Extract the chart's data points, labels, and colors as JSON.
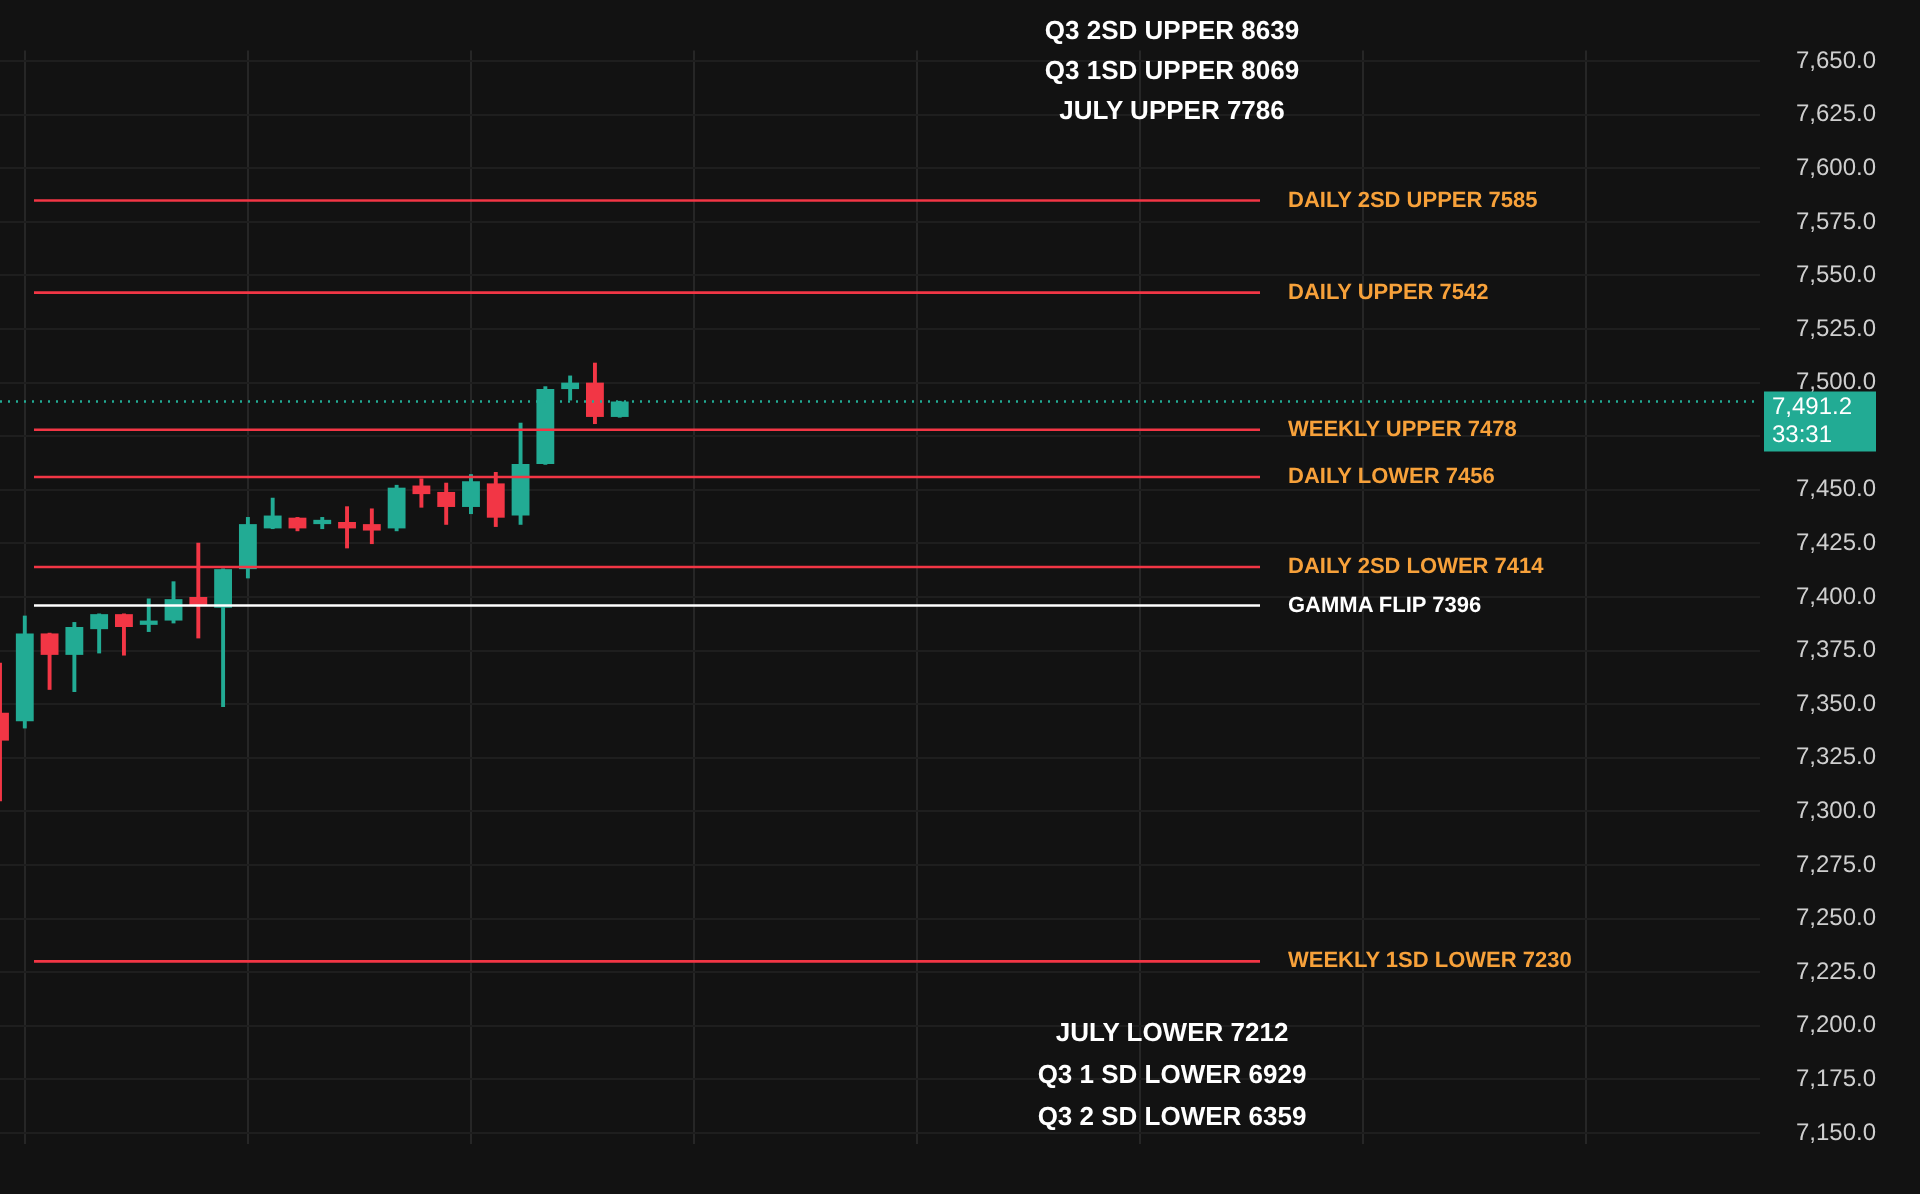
{
  "chart_data": {
    "type": "candlestick",
    "categories": [
      null,
      null,
      null,
      null,
      null,
      null,
      null,
      null,
      null,
      null,
      null,
      null,
      null,
      null,
      null,
      null,
      null,
      null,
      null,
      null,
      null,
      null,
      null,
      null,
      null,
      null,
      null,
      null,
      null,
      null,
      null,
      null,
      null,
      null,
      null,
      null,
      null,
      null,
      null,
      null,
      null,
      null,
      null,
      null,
      null,
      null,
      null,
      null,
      null,
      null,
      null,
      null,
      null,
      null,
      null,
      null,
      null,
      null,
      null,
      null,
      null,
      null,
      null,
      null,
      null,
      null,
      null,
      null,
      null,
      null,
      null,
      null
    ],
    "ohlc": [
      [
        7346,
        7369,
        7305,
        7333
      ],
      [
        7342,
        7391,
        7339,
        7383
      ],
      [
        7383,
        7383,
        7357,
        7373
      ],
      [
        7373,
        7388,
        7356,
        7386
      ],
      [
        7385,
        7392,
        7374,
        7392
      ],
      [
        7392,
        7392,
        7373,
        7386
      ],
      [
        7387,
        7399,
        7384,
        7389
      ],
      [
        7389,
        7407,
        7388,
        7399
      ],
      [
        7400,
        7425,
        7381,
        7396
      ],
      [
        7395,
        7413,
        7349,
        7413
      ],
      [
        7413,
        7437,
        7409,
        7434
      ],
      [
        7432,
        7446,
        7432,
        7438
      ],
      [
        7437,
        7437,
        7431,
        7432
      ],
      [
        7434,
        7437,
        7432,
        7436
      ],
      [
        7435,
        7442,
        7423,
        7432
      ],
      [
        7434,
        7441,
        7425,
        7431
      ],
      [
        7432,
        7452,
        7431,
        7451
      ],
      [
        7452,
        7455,
        7442,
        7448
      ],
      [
        7449,
        7453,
        7434,
        7442
      ],
      [
        7442,
        7457,
        7439,
        7454
      ],
      [
        7453,
        7458,
        7433,
        7437
      ],
      [
        7438,
        7481,
        7434,
        7462
      ],
      [
        7462,
        7498,
        7462,
        7497
      ],
      [
        7497,
        7503,
        7492,
        7500
      ],
      [
        7500,
        7509,
        7481,
        7484
      ],
      [
        7484,
        7491.2,
        7484,
        7491.2
      ],
      null,
      null,
      null,
      null,
      null,
      null,
      null,
      null,
      null,
      null,
      null,
      null,
      null,
      null,
      null,
      null,
      null,
      null,
      null,
      null,
      null,
      null,
      null,
      null,
      null,
      null,
      null,
      null,
      null,
      null,
      null,
      null,
      null,
      null,
      null,
      null,
      null,
      null,
      null,
      null,
      null,
      null,
      null,
      null,
      null,
      null
    ],
    "colors": [
      "#f23645",
      "#22ab94",
      "#f23645",
      "#22ab94",
      "#22ab94",
      "#f23645",
      "#22ab94",
      "#22ab94",
      "#f23645",
      "#22ab94",
      "#22ab94",
      "#22ab94",
      "#f23645",
      "#22ab94",
      "#f23645",
      "#f23645",
      "#22ab94",
      "#f23645",
      "#f23645",
      "#22ab94",
      "#f23645",
      "#22ab94",
      "#22ab94",
      "#22ab94",
      "#f23645",
      "#22ab94",
      null,
      null,
      null,
      null,
      null,
      null,
      null,
      null,
      null,
      null,
      null,
      null,
      null,
      null,
      null,
      null,
      null,
      null,
      null,
      null,
      null,
      null,
      null,
      null,
      null,
      null,
      null,
      null,
      null,
      null,
      null,
      null,
      null,
      null,
      null,
      null,
      null,
      null,
      null,
      null,
      null,
      null,
      null,
      null,
      null,
      null
    ],
    "ylim": [
      7145,
      7655
    ],
    "yticks": [
      {
        "value": 7150,
        "label": "7,150.0"
      },
      {
        "value": 7175,
        "label": "7,175.0"
      },
      {
        "value": 7200,
        "label": "7,200.0"
      },
      {
        "value": 7225,
        "label": "7,225.0"
      },
      {
        "value": 7250,
        "label": "7,250.0"
      },
      {
        "value": 7275,
        "label": "7,275.0"
      },
      {
        "value": 7300,
        "label": "7,300.0"
      },
      {
        "value": 7325,
        "label": "7,325.0"
      },
      {
        "value": 7350,
        "label": "7,350.0"
      },
      {
        "value": 7375,
        "label": "7,375.0"
      },
      {
        "value": 7400,
        "label": "7,400.0"
      },
      {
        "value": 7425,
        "label": "7,425.0"
      },
      {
        "value": 7450,
        "label": "7,450.0"
      },
      {
        "value": 7475,
        "label": null
      },
      {
        "value": 7500,
        "label": "7,500.0"
      },
      {
        "value": 7525,
        "label": "7,525.0"
      },
      {
        "value": 7550,
        "label": "7,550.0"
      },
      {
        "value": 7575,
        "label": "7,575.0"
      },
      {
        "value": 7600,
        "label": "7,600.0"
      },
      {
        "value": 7625,
        "label": "7,625.0"
      },
      {
        "value": 7650,
        "label": "7,650.0"
      }
    ],
    "grid": true,
    "tick_labels": "y",
    "ref_lines": [
      {
        "axis": "y",
        "value": 7585,
        "label": "DAILY 2SD UPPER 7585",
        "color": "#f23645"
      },
      {
        "axis": "y",
        "value": 7542,
        "label": "DAILY UPPER 7542",
        "color": "#f23645"
      },
      {
        "axis": "y",
        "value": 7478,
        "label": "WEEKLY UPPER 7478",
        "color": "#f23645"
      },
      {
        "axis": "y",
        "value": 7456,
        "label": "DAILY LOWER 7456",
        "color": "#f23645"
      },
      {
        "axis": "y",
        "value": 7414,
        "label": "DAILY 2SD LOWER 7414",
        "color": "#f23645"
      },
      {
        "axis": "y",
        "value": 7396,
        "label": "GAMMA FLIP 7396",
        "color": "#ffffff"
      },
      {
        "axis": "y",
        "value": 7230,
        "label": "WEEKLY 1SD LOWER 7230",
        "color": "#f23645"
      },
      {
        "axis": "y",
        "value": 7491.2,
        "label": "7,491.2\n33:31",
        "color": "#22ab94",
        "line_style": "dotted"
      }
    ],
    "annotations": [
      "Q3 2SD UPPER 8639",
      "Q3 1SD UPPER 8069",
      "JULY UPPER 7786",
      "JULY LOWER 7212",
      "Q3 1 SD LOWER 6929",
      "Q3 2 SD LOWER 6359"
    ]
  }
}
